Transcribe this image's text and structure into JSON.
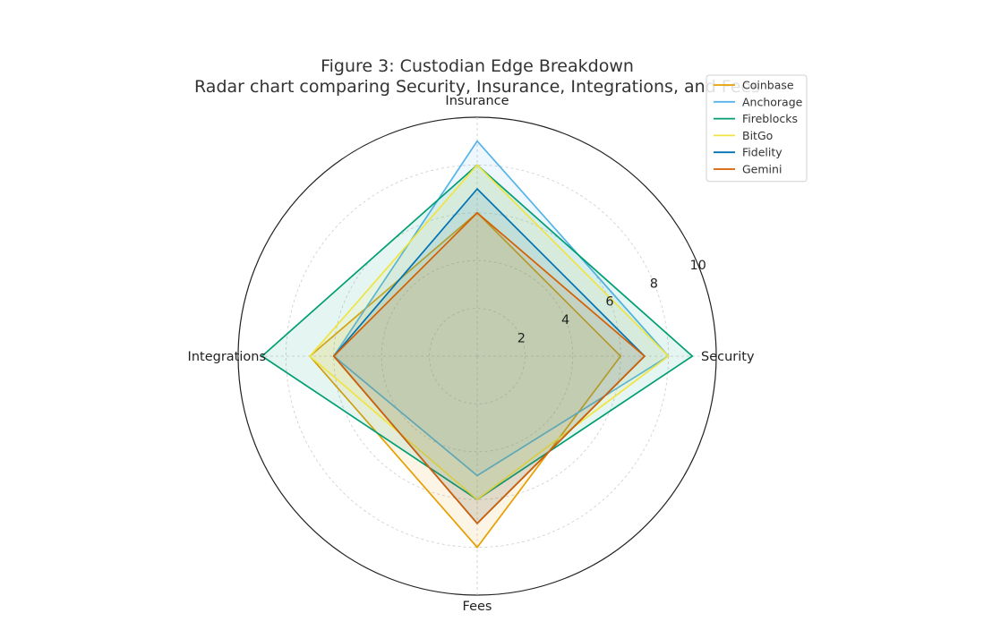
{
  "chart_data": {
    "type": "radar",
    "title": "Figure 3: Custodian Edge Breakdown",
    "subtitle": "Radar chart comparing Security, Insurance, Integrations, and Fees",
    "axes": [
      "Security",
      "Insurance",
      "Integrations",
      "Fees"
    ],
    "rlim": [
      0,
      10
    ],
    "rticks": [
      2,
      4,
      6,
      8,
      10
    ],
    "grid": true,
    "legend_position": "top-right",
    "series": [
      {
        "name": "Coinbase",
        "values": [
          6,
          6,
          7,
          8
        ],
        "color": "#E69F00"
      },
      {
        "name": "Anchorage",
        "values": [
          8,
          9,
          6,
          5
        ],
        "color": "#56B4E9"
      },
      {
        "name": "Fireblocks",
        "values": [
          9,
          8,
          9,
          6
        ],
        "color": "#009E73"
      },
      {
        "name": "BitGo",
        "values": [
          8,
          8,
          7,
          6
        ],
        "color": "#F0E442"
      },
      {
        "name": "Fidelity",
        "values": [
          7,
          7,
          6,
          7
        ],
        "color": "#0072B2"
      },
      {
        "name": "Gemini",
        "values": [
          7,
          6,
          6,
          7
        ],
        "color": "#D55E00"
      }
    ]
  }
}
